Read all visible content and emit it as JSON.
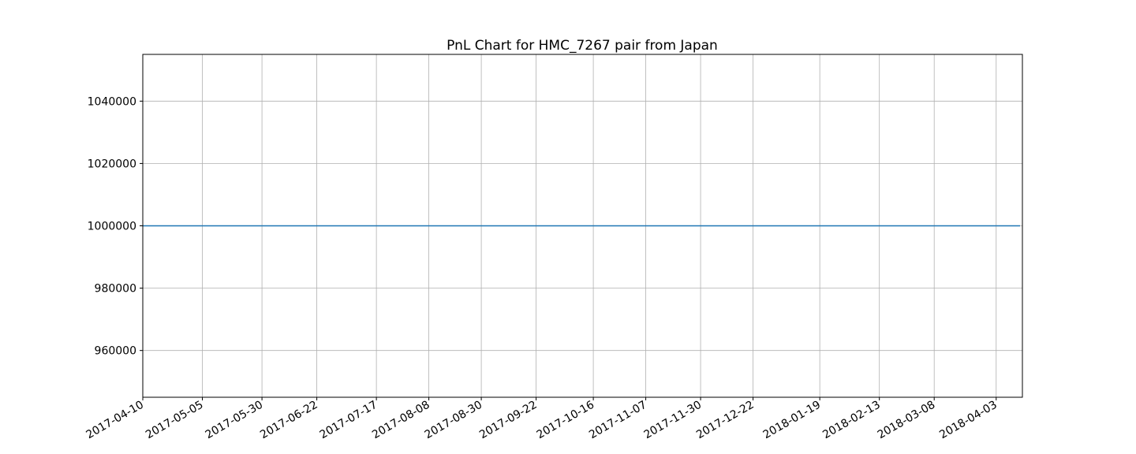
{
  "chart_data": {
    "type": "line",
    "title": "PnL Chart for HMC_7267 pair from Japan",
    "xlabel": "",
    "ylabel": "",
    "x_ticks": [
      "2017-04-10",
      "2017-05-05",
      "2017-05-30",
      "2017-06-22",
      "2017-07-17",
      "2017-08-08",
      "2017-08-30",
      "2017-09-22",
      "2017-10-16",
      "2017-11-07",
      "2017-11-30",
      "2017-12-22",
      "2018-01-19",
      "2018-02-13",
      "2018-03-08",
      "2018-04-03"
    ],
    "y_ticks": [
      "960000",
      "980000",
      "1000000",
      "1020000",
      "1040000"
    ],
    "xlim": [
      "2017-04-10",
      "2018-04-14"
    ],
    "ylim": [
      945000,
      1055000
    ],
    "grid": true,
    "series": [
      {
        "color": "#1f77b4",
        "x": [
          "2017-04-10",
          "2018-04-13"
        ],
        "y": [
          1000000,
          1000000
        ]
      }
    ]
  }
}
